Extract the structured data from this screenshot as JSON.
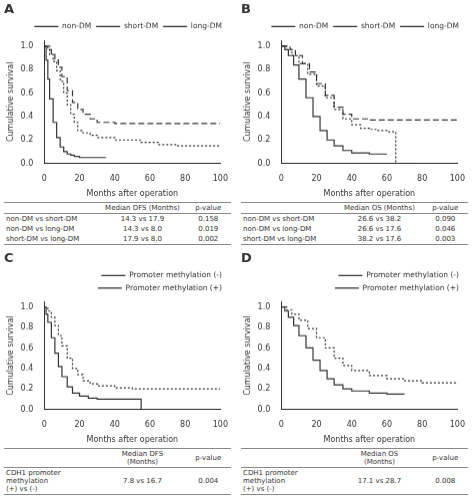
{
  "chart_data": [
    {
      "type": "step",
      "title": "A",
      "xlabel": "Months after operation",
      "ylabel": "Cumulative survival",
      "color": "#333333",
      "legend": "upper right",
      "grid": false,
      "xlim": [
        0,
        100
      ],
      "xticks": [
        0,
        20,
        40,
        60,
        80,
        100
      ],
      "ylim": [
        0,
        1.05
      ],
      "yticks": [
        {
          "value": 0.0,
          "label": "0.0"
        },
        0.2,
        0.4,
        0.6,
        0.8,
        {
          "value": 1.0,
          "label": "1.0"
        }
      ],
      "series": [
        {
          "name": "non-DM",
          "line_style": "dotted",
          "x": [
            0,
            3,
            5,
            7,
            9,
            11,
            13,
            15,
            17,
            19,
            22,
            26,
            30,
            40,
            55,
            65,
            75,
            100
          ],
          "values": [
            1.0,
            0.93,
            0.87,
            0.79,
            0.7,
            0.6,
            0.5,
            0.42,
            0.35,
            0.28,
            0.26,
            0.24,
            0.22,
            0.2,
            0.18,
            0.16,
            0.15,
            0.15
          ]
        },
        {
          "name": "short-DM",
          "line_style": "dashed",
          "x": [
            0,
            2,
            4,
            6,
            8,
            10,
            13,
            16,
            19,
            22,
            26,
            30,
            40,
            60,
            80,
            100
          ],
          "values": [
            1.0,
            0.97,
            0.93,
            0.88,
            0.82,
            0.74,
            0.62,
            0.52,
            0.46,
            0.42,
            0.38,
            0.35,
            0.34,
            0.34,
            0.34,
            0.34
          ]
        },
        {
          "name": "long-DM",
          "line_style": "solid",
          "x": [
            0,
            1,
            2,
            3,
            5,
            7,
            9,
            11,
            13,
            15,
            17,
            20,
            25,
            30,
            35
          ],
          "values": [
            1.0,
            0.88,
            0.72,
            0.55,
            0.35,
            0.22,
            0.14,
            0.1,
            0.08,
            0.07,
            0.06,
            0.05,
            0.05,
            0.05,
            0.05
          ]
        }
      ],
      "table": {
        "header": [
          "Median DFS (Months)",
          "p-value"
        ],
        "rows": [
          [
            "non-DM vs short-DM",
            "14.3 vs 17.9",
            "0.158"
          ],
          [
            "non-DM vs long-DM",
            "14.3 vs 8.0",
            "0.019"
          ],
          [
            "short-DM vs long-DM",
            "17.9 vs 8.0",
            "0.002"
          ]
        ]
      }
    },
    {
      "type": "step",
      "title": "B",
      "xlabel": "Months after operation",
      "ylabel": "Cumulative survival",
      "color": "#333333",
      "legend": "upper right",
      "grid": false,
      "xlim": [
        0,
        100
      ],
      "xticks": [
        0,
        20,
        40,
        60,
        80,
        100
      ],
      "ylim": [
        0,
        1.05
      ],
      "yticks": [
        {
          "value": 0.0,
          "label": "0.0"
        },
        0.2,
        0.4,
        0.6,
        0.8,
        {
          "value": 1.0,
          "label": "1.0"
        }
      ],
      "series": [
        {
          "name": "non-DM",
          "line_style": "dotted",
          "x": [
            0,
            3,
            6,
            10,
            15,
            20,
            25,
            30,
            35,
            40,
            45,
            50,
            55,
            60,
            65,
            70,
            75
          ],
          "values": [
            1.0,
            0.97,
            0.92,
            0.85,
            0.76,
            0.66,
            0.56,
            0.46,
            0.38,
            0.33,
            0.3,
            0.29,
            0.28,
            0.27,
            0.0,
            0.0,
            0.0
          ]
        },
        {
          "name": "short-DM",
          "line_style": "dashed",
          "x": [
            0,
            2,
            5,
            8,
            12,
            16,
            20,
            25,
            30,
            35,
            40,
            50,
            60,
            80,
            100
          ],
          "values": [
            1.0,
            1.0,
            0.97,
            0.92,
            0.85,
            0.78,
            0.68,
            0.58,
            0.48,
            0.42,
            0.38,
            0.37,
            0.37,
            0.37,
            0.37
          ]
        },
        {
          "name": "long-DM",
          "line_style": "solid",
          "x": [
            0,
            2,
            4,
            7,
            10,
            14,
            18,
            22,
            26,
            30,
            35,
            40,
            50,
            60
          ],
          "values": [
            1.0,
            0.97,
            0.92,
            0.84,
            0.72,
            0.56,
            0.4,
            0.28,
            0.2,
            0.15,
            0.11,
            0.09,
            0.08,
            0.08
          ]
        }
      ],
      "table": {
        "header": [
          "Median OS (Months)",
          "p-value"
        ],
        "rows": [
          [
            "non-DM vs short-DM",
            "26.6 vs 38.2",
            "0.090"
          ],
          [
            "non-DM vs long-DM",
            "26.6 vs 17.6",
            "0.046"
          ],
          [
            "short-DM vs long-DM",
            "38.2 vs 17.6",
            "0.003"
          ]
        ]
      }
    },
    {
      "type": "step",
      "title": "C",
      "xlabel": "Months after operation",
      "ylabel": "Cumulative survival",
      "color": "#333333",
      "legend": "upper right",
      "grid": false,
      "xlim": [
        0,
        100
      ],
      "xticks": [
        0,
        20,
        40,
        60,
        80,
        100
      ],
      "ylim": [
        0,
        1.05
      ],
      "yticks": [
        {
          "value": 0.0,
          "label": "0.0"
        },
        0.2,
        0.4,
        0.6,
        0.8,
        {
          "value": 1.0,
          "label": "1.0"
        }
      ],
      "series": [
        {
          "name": "Promoter methylation (-)",
          "line_style": "dotted",
          "x": [
            0,
            2,
            4,
            6,
            8,
            10,
            13,
            16,
            19,
            22,
            26,
            30,
            40,
            50,
            60,
            80,
            100
          ],
          "values": [
            1.0,
            0.96,
            0.9,
            0.82,
            0.72,
            0.62,
            0.5,
            0.4,
            0.34,
            0.28,
            0.25,
            0.23,
            0.21,
            0.2,
            0.2,
            0.2,
            0.2
          ]
        },
        {
          "name": "Promoter methylation (+)",
          "line_style": "solid",
          "x": [
            0,
            1,
            2,
            4,
            6,
            8,
            10,
            13,
            16,
            20,
            25,
            30,
            40,
            50,
            55,
            60
          ],
          "values": [
            1.0,
            0.93,
            0.85,
            0.7,
            0.55,
            0.42,
            0.32,
            0.22,
            0.16,
            0.13,
            0.11,
            0.1,
            0.1,
            0.1,
            0.0,
            0.0
          ]
        }
      ],
      "table": {
        "header": [
          "Median DFS\n(Months)",
          "p-value"
        ],
        "rows": [
          [
            "CDH1 promoter methylation\n(+) vs (-)",
            "7.8 vs 16.7",
            "0.004"
          ]
        ]
      }
    },
    {
      "type": "step",
      "title": "D",
      "xlabel": "Months after operation",
      "ylabel": "Cumulative survival",
      "color": "#333333",
      "legend": "upper right",
      "grid": false,
      "xlim": [
        0,
        100
      ],
      "xticks": [
        0,
        20,
        40,
        60,
        80,
        100
      ],
      "ylim": [
        0,
        1.05
      ],
      "yticks": [
        {
          "value": 0.0,
          "label": "0.0"
        },
        0.2,
        0.4,
        0.6,
        0.8,
        {
          "value": 1.0,
          "label": "1.0"
        }
      ],
      "series": [
        {
          "name": "Promoter methylation (-)",
          "line_style": "dotted",
          "x": [
            0,
            3,
            6,
            10,
            15,
            20,
            25,
            30,
            35,
            40,
            50,
            60,
            70,
            80,
            100
          ],
          "values": [
            1.0,
            0.97,
            0.93,
            0.87,
            0.79,
            0.7,
            0.6,
            0.5,
            0.43,
            0.38,
            0.33,
            0.3,
            0.28,
            0.26,
            0.25
          ]
        },
        {
          "name": "Promoter methylation (+)",
          "line_style": "solid",
          "x": [
            0,
            2,
            4,
            7,
            10,
            14,
            18,
            22,
            26,
            30,
            35,
            40,
            50,
            60,
            70
          ],
          "values": [
            1.0,
            0.96,
            0.9,
            0.82,
            0.72,
            0.6,
            0.48,
            0.38,
            0.3,
            0.24,
            0.2,
            0.18,
            0.16,
            0.15,
            0.15
          ]
        }
      ],
      "table": {
        "header": [
          "Median OS\n(Months)",
          "p-value"
        ],
        "rows": [
          [
            "CDH1 promoter methylation\n(+) vs (-)",
            "17.1 vs 28.7",
            "0.008"
          ]
        ]
      }
    }
  ]
}
